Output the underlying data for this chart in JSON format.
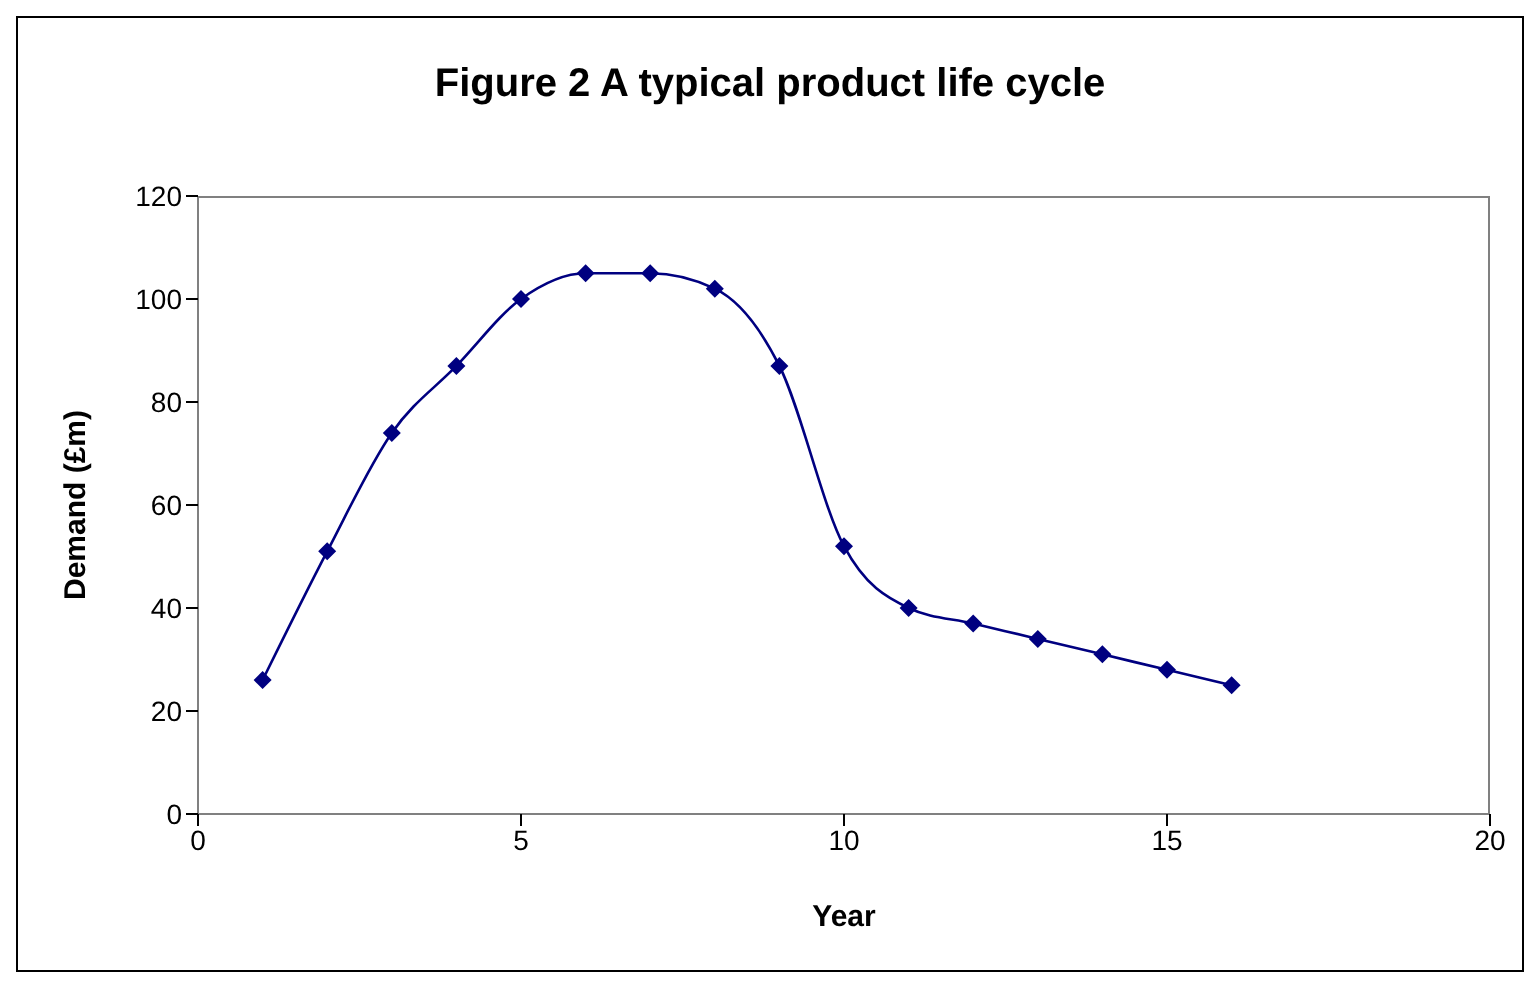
{
  "chart_data": {
    "type": "line",
    "title": "Figure 2 A typical product life cycle",
    "xlabel": "Year",
    "ylabel": "Demand (£m)",
    "x": [
      1,
      2,
      3,
      4,
      5,
      6,
      7,
      8,
      9,
      10,
      11,
      12,
      13,
      14,
      15,
      16
    ],
    "series": [
      {
        "color": "#000080",
        "values": [
          26,
          51,
          74,
          87,
          100,
          105,
          105,
          102,
          87,
          52,
          40,
          37,
          34,
          31,
          28,
          25
        ]
      }
    ],
    "xlim": [
      0,
      20
    ],
    "xticks": [
      0,
      5,
      10,
      15,
      20
    ],
    "ylim": [
      0,
      120
    ],
    "yticks": [
      0,
      20,
      40,
      60,
      80,
      100,
      120
    ],
    "grid": false,
    "legend": false,
    "marker": "diamond",
    "line_style": "solid"
  }
}
